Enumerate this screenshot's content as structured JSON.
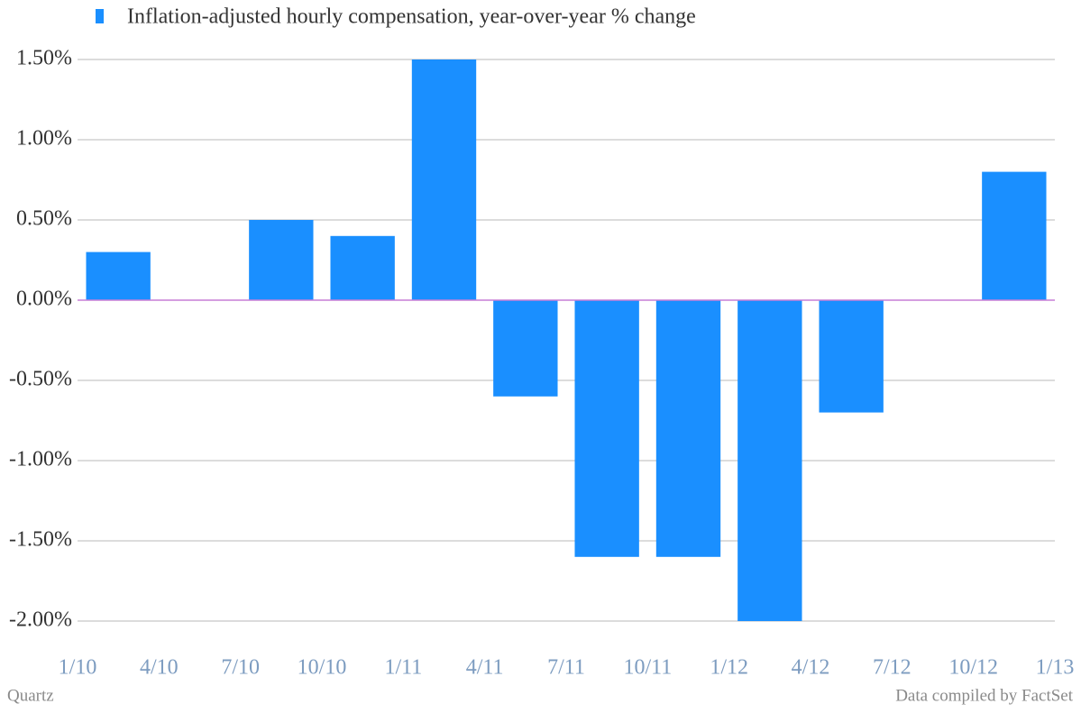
{
  "chart_data": {
    "type": "bar",
    "legend": "Inflation-adjusted hourly compensation, year-over-year % change",
    "source_left": "Quartz",
    "source_right": "Data compiled by FactSet",
    "categories": [
      null,
      null,
      null,
      null,
      null,
      null,
      null,
      null,
      null,
      null,
      null,
      null
    ],
    "values": [
      0.3,
      0,
      0.5,
      0.4,
      1.5,
      -0.6,
      -1.6,
      -1.6,
      -2.0,
      -0.7,
      0,
      0.8
    ],
    "color": "#1a8fff",
    "xlim": [
      0,
      12
    ],
    "xticks": [
      {
        "value": 0,
        "label": "1/10"
      },
      {
        "value": 1,
        "label": "4/10"
      },
      {
        "value": 2,
        "label": "7/10"
      },
      {
        "value": 3,
        "label": "10/10"
      },
      {
        "value": 4,
        "label": "1/11"
      },
      {
        "value": 5,
        "label": "4/11"
      },
      {
        "value": 6,
        "label": "7/11"
      },
      {
        "value": 7,
        "label": "10/11"
      },
      {
        "value": 8,
        "label": "1/12"
      },
      {
        "value": 9,
        "label": "4/12"
      },
      {
        "value": 10,
        "label": "7/12"
      },
      {
        "value": 11,
        "label": "10/12"
      },
      {
        "value": 12,
        "label": "1/13"
      }
    ],
    "ylim": [
      -2.0,
      1.5
    ],
    "yticks": [
      {
        "value": 1.5,
        "label": "1.50%"
      },
      {
        "value": 1.0,
        "label": "1.00%"
      },
      {
        "value": 0.5,
        "label": "0.50%"
      },
      {
        "value": 0,
        "label": "0.00%"
      },
      {
        "value": -0.5,
        "label": "-0.50%"
      },
      {
        "value": -1.0,
        "label": "-1.00%"
      },
      {
        "value": -1.5,
        "label": "-1.50%"
      },
      {
        "value": -2.0,
        "label": "-2.00%"
      }
    ],
    "grid": true
  }
}
